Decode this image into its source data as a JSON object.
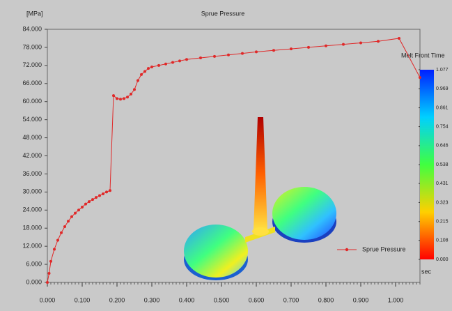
{
  "chart_data": {
    "type": "line",
    "title": "Sprue Pressure",
    "y_unit_label": "[MPa]",
    "annotation": "Melt Front Time",
    "legend": "bottom-right",
    "xlim": [
      0,
      1.07
    ],
    "ylim": [
      0,
      84
    ],
    "xticks": [
      {
        "value": 0,
        "label": "0.000"
      },
      {
        "value": 0.1,
        "label": "0.100"
      },
      {
        "value": 0.2,
        "label": "0.200"
      },
      {
        "value": 0.3,
        "label": "0.300"
      },
      {
        "value": 0.4,
        "label": "0.400"
      },
      {
        "value": 0.5,
        "label": "0.500"
      },
      {
        "value": 0.6,
        "label": "0.600"
      },
      {
        "value": 0.7,
        "label": "0.700"
      },
      {
        "value": 0.8,
        "label": "0.800"
      },
      {
        "value": 0.9,
        "label": "0.900"
      },
      {
        "value": 1,
        "label": "1.000"
      }
    ],
    "yticks": [
      {
        "value": 0,
        "label": "0.000"
      },
      {
        "value": 6,
        "label": "6.000"
      },
      {
        "value": 12,
        "label": "12.000"
      },
      {
        "value": 18,
        "label": "18.000"
      },
      {
        "value": 24,
        "label": "24.000"
      },
      {
        "value": 30,
        "label": "30.000"
      },
      {
        "value": 36,
        "label": "36.000"
      },
      {
        "value": 42,
        "label": "42.000"
      },
      {
        "value": 48,
        "label": "48.000"
      },
      {
        "value": 54,
        "label": "54.000"
      },
      {
        "value": 60,
        "label": "60.000"
      },
      {
        "value": 66,
        "label": "66.000"
      },
      {
        "value": 72,
        "label": "72.000"
      },
      {
        "value": 78,
        "label": "78.000"
      },
      {
        "value": 84,
        "label": "84.000"
      }
    ],
    "x": [
      0,
      0.005,
      0.01,
      0.02,
      0.03,
      0.04,
      0.05,
      0.06,
      0.07,
      0.08,
      0.09,
      0.1,
      0.11,
      0.12,
      0.13,
      0.14,
      0.15,
      0.16,
      0.17,
      0.18,
      0.19,
      0.2,
      0.21,
      0.22,
      0.23,
      0.24,
      0.25,
      0.26,
      0.27,
      0.28,
      0.29,
      0.3,
      0.32,
      0.34,
      0.36,
      0.38,
      0.4,
      0.44,
      0.48,
      0.52,
      0.56,
      0.6,
      0.65,
      0.7,
      0.75,
      0.8,
      0.85,
      0.9,
      0.95,
      1.01,
      1.07
    ],
    "series": [
      {
        "name": "Sprue Pressure",
        "color": "#e02828",
        "values": [
          0,
          3,
          7,
          11,
          14,
          16.5,
          18.5,
          20.3,
          21.8,
          23,
          24,
          25,
          26,
          26.8,
          27.5,
          28.2,
          28.8,
          29.4,
          30,
          30.5,
          62,
          61,
          60.8,
          61,
          61.5,
          62.5,
          64,
          67,
          69,
          70,
          71,
          71.5,
          72,
          72.5,
          73,
          73.5,
          74,
          74.5,
          75,
          75.5,
          76,
          76.5,
          77,
          77.5,
          78,
          78.5,
          79,
          79.5,
          80,
          81,
          68
        ]
      }
    ],
    "colorbar": {
      "unit": "sec",
      "lim": [
        0,
        1.077
      ],
      "ticks": [
        1.077,
        0.969,
        0.861,
        0.754,
        0.646,
        0.538,
        0.431,
        0.323,
        0.215,
        0.108,
        {
          "value": 0,
          "label": "0.000"
        }
      ]
    }
  }
}
